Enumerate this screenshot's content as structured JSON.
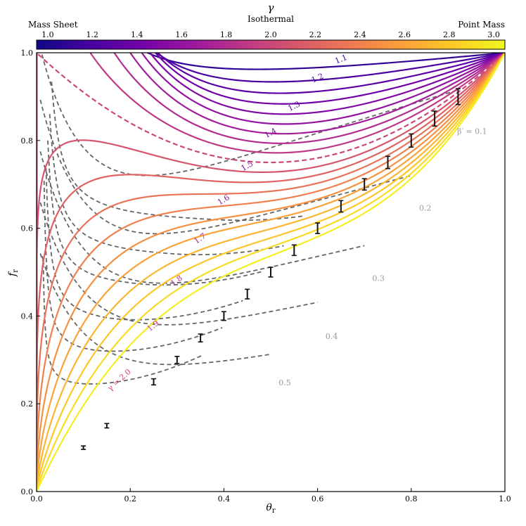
{
  "chart_data": {
    "type": "line",
    "xlabel": "θr",
    "ylabel": "fr",
    "xlim": [
      0,
      1
    ],
    "ylim": [
      0,
      1
    ],
    "x_ticks": [
      "0.0",
      "0.2",
      "0.4",
      "0.6",
      "0.8",
      "1.0"
    ],
    "y_ticks": [
      "0.0",
      "0.2",
      "0.4",
      "0.6",
      "0.8",
      "1.0"
    ],
    "colorbar": {
      "title": "γ",
      "range": [
        0.95,
        3.05
      ],
      "ticks": [
        "1.0",
        "1.2",
        "1.4",
        "1.6",
        "1.8",
        "2.0",
        "2.2",
        "2.4",
        "2.6",
        "2.8",
        "3.0"
      ],
      "label_left": "Mass Sheet",
      "label_center": "Isothermal",
      "label_right": "Point Mass",
      "colormap": [
        "#0d0887",
        "#46039f",
        "#7201a8",
        "#9c179e",
        "#bd3786",
        "#d8576b",
        "#ed7953",
        "#fb9f3a",
        "#fdca26",
        "#f0f921"
      ]
    },
    "gamma_contours": {
      "values": [
        1.1,
        1.2,
        1.3,
        1.4,
        1.5,
        1.6,
        1.7,
        1.8,
        1.9,
        2.0,
        2.1,
        2.2,
        2.3,
        2.4,
        2.5,
        2.6,
        2.7,
        2.8,
        2.9,
        3.0
      ],
      "labels": [
        {
          "gamma": 1.1,
          "text": "1.1",
          "x": 0.652,
          "y": 0.98
        },
        {
          "gamma": 1.2,
          "text": "1.2",
          "x": 0.602,
          "y": 0.937
        },
        {
          "gamma": 1.3,
          "text": "1.3",
          "x": 0.552,
          "y": 0.873
        },
        {
          "gamma": 1.4,
          "text": "1.4",
          "x": 0.502,
          "y": 0.812
        },
        {
          "gamma": 1.5,
          "text": "1.5",
          "x": 0.452,
          "y": 0.737
        },
        {
          "gamma": 1.6,
          "text": "1.6",
          "x": 0.402,
          "y": 0.66
        },
        {
          "gamma": 1.7,
          "text": "1.7",
          "x": 0.352,
          "y": 0.572
        },
        {
          "gamma": 1.8,
          "text": "1.8",
          "x": 0.302,
          "y": 0.476
        },
        {
          "gamma": 1.9,
          "text": "1.9",
          "x": 0.252,
          "y": 0.373
        },
        {
          "gamma": 2.0,
          "text": "γ = 2.0",
          "x": 0.18,
          "y": 0.25
        }
      ]
    },
    "beta_contours": {
      "values": [
        0.1,
        0.2,
        0.3,
        0.4,
        0.5
      ],
      "labels": [
        {
          "beta": 0.1,
          "text": "β′ = 0.1",
          "x": 0.93,
          "y": 0.815
        },
        {
          "beta": 0.2,
          "text": "0.2",
          "x": 0.83,
          "y": 0.64
        },
        {
          "beta": 0.3,
          "text": "0.3",
          "x": 0.73,
          "y": 0.48
        },
        {
          "beta": 0.4,
          "text": "0.4",
          "x": 0.63,
          "y": 0.348
        },
        {
          "beta": 0.5,
          "text": "0.5",
          "x": 0.53,
          "y": 0.242
        }
      ]
    },
    "points": {
      "x": [
        0.1,
        0.15,
        0.25,
        0.3,
        0.35,
        0.4,
        0.45,
        0.5,
        0.55,
        0.6,
        0.65,
        0.7,
        0.75,
        0.8,
        0.85,
        0.9
      ],
      "y": [
        0.1,
        0.15,
        0.25,
        0.3,
        0.35,
        0.4,
        0.45,
        0.5,
        0.55,
        0.6,
        0.65,
        0.7,
        0.75,
        0.8,
        0.85,
        0.9
      ],
      "yerr": [
        0.004,
        0.005,
        0.007,
        0.008,
        0.009,
        0.01,
        0.011,
        0.011,
        0.012,
        0.012,
        0.013,
        0.013,
        0.014,
        0.015,
        0.017,
        0.018
      ]
    },
    "colors": {
      "dashed_contour": "#666666",
      "beta_label": "#999999",
      "error_bar": "#111111"
    }
  }
}
